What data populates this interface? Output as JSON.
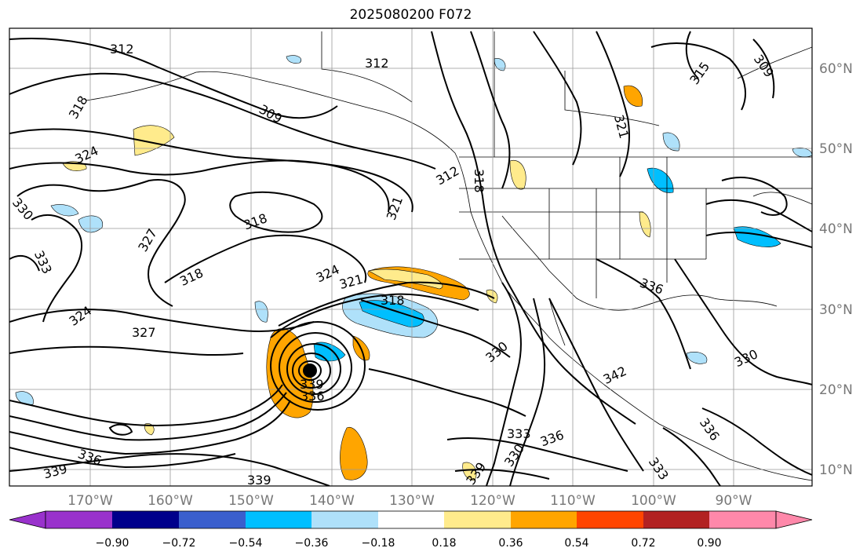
{
  "title": "2025080200 F072",
  "map": {
    "longitude_labels": [
      "170°W",
      "160°W",
      "150°W",
      "140°W",
      "130°W",
      "120°W",
      "110°W",
      "100°W",
      "90°W"
    ],
    "latitude_labels": [
      "60°N",
      "50°N",
      "40°N",
      "30°N",
      "20°N",
      "10°N"
    ],
    "contour_labels": [
      "312",
      "315",
      "318",
      "309",
      "324",
      "330",
      "333",
      "327",
      "321",
      "318",
      "336",
      "339",
      "330",
      "342",
      "333",
      "336",
      "339",
      "315",
      "321",
      "309",
      "312",
      "318",
      "324",
      "318",
      "339",
      "336",
      "330"
    ],
    "storm_marker": "tropical-cyclone-center"
  },
  "colorbar": {
    "tick_labels": [
      "−0.90",
      "−0.72",
      "−0.54",
      "−0.36",
      "−0.18",
      "0.18",
      "0.36",
      "0.54",
      "0.72",
      "0.90"
    ],
    "colors": [
      "#9932cc",
      "#00008b",
      "#3a5fcd",
      "#00bfff",
      "#afe1fa",
      "#ffffff",
      "#ffeb8c",
      "#ffa500",
      "#ff4500",
      "#b22222",
      "#ff88aa"
    ]
  }
}
